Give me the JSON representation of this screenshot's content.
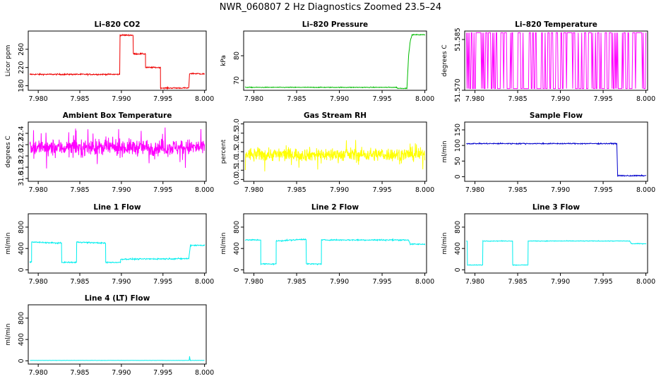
{
  "figure": {
    "title": "NWR_060807  2 Hz Diagnostics Zoomed 23.5–24"
  },
  "chart_data": [
    {
      "type": "line",
      "title": "Li–820 CO2",
      "ylabel": "Licor ppm",
      "xlim": [
        7.9788,
        8.0002
      ],
      "ylim": [
        170,
        300
      ],
      "xticks": [
        "7.980",
        "7.985",
        "7.990",
        "7.995",
        "8.000"
      ],
      "xtick_values": [
        7.98,
        7.985,
        7.99,
        7.995,
        8.0
      ],
      "yticks": [
        "180",
        "220",
        "260"
      ],
      "ytick_values": [
        180,
        220,
        260
      ],
      "color": "#ee0000",
      "noise": 1,
      "series": [
        {
          "x": [
            7.979,
            7.9898,
            7.9898,
            7.9914,
            7.9914,
            7.9929,
            7.9929,
            7.9947,
            7.9947,
            7.9981,
            7.9982,
            8.0
          ],
          "y": [
            205,
            205,
            291,
            291,
            250,
            250,
            220,
            220,
            175,
            175,
            207,
            206
          ]
        }
      ]
    },
    {
      "type": "line",
      "title": "Li–820 Pressure",
      "ylabel": "kPa",
      "xlim": [
        7.9788,
        8.0002
      ],
      "ylim": [
        66,
        90
      ],
      "xticks": [
        "7.980",
        "7.985",
        "7.990",
        "7.995",
        "8.000"
      ],
      "xtick_values": [
        7.98,
        7.985,
        7.99,
        7.995,
        8.0
      ],
      "yticks": [
        "70",
        "80"
      ],
      "ytick_values": [
        70,
        80
      ],
      "color": "#00bb00",
      "noise": 0.1,
      "series": [
        {
          "x": [
            7.979,
            7.9967,
            7.9968,
            7.9979,
            7.9981,
            7.9983,
            7.9985,
            8.0
          ],
          "y": [
            67.2,
            67.2,
            66.8,
            66.8,
            80,
            86,
            88.5,
            88.5
          ]
        }
      ]
    },
    {
      "type": "line",
      "title": "Li–820 Temperature",
      "ylabel": "degrees C",
      "xlim": [
        7.9788,
        8.0002
      ],
      "ylim": [
        51.57,
        51.5875
      ],
      "xticks": [
        "7.980",
        "7.985",
        "7.990",
        "7.995",
        "8.000"
      ],
      "xtick_values": [
        7.98,
        7.985,
        7.99,
        7.995,
        8.0
      ],
      "yticks": [
        "51.570",
        "51.585"
      ],
      "ytick_values": [
        51.57,
        51.585
      ],
      "color": "#ff00ff",
      "pattern": "toggle",
      "low": 51.5705,
      "high": 51.587,
      "series": []
    },
    {
      "type": "line",
      "title": "Ambient Box Temperature",
      "ylabel": "degrees C",
      "xlim": [
        7.9788,
        8.0002
      ],
      "ylim": [
        31.55,
        32.6
      ],
      "xticks": [
        "7.980",
        "7.985",
        "7.990",
        "7.995",
        "8.000"
      ],
      "xtick_values": [
        7.98,
        7.985,
        7.99,
        7.995,
        8.0
      ],
      "yticks": [
        "31.6",
        "31.8",
        "32.0",
        "32.2",
        "32.4"
      ],
      "ytick_values": [
        31.6,
        31.8,
        32.0,
        32.2,
        32.4
      ],
      "color": "#ff00ff",
      "pattern": "noise",
      "mean": 32.15,
      "spread": 0.22,
      "series": []
    },
    {
      "type": "line",
      "title": "Gas Stream RH",
      "ylabel": "percent",
      "xlim": [
        7.9788,
        8.0002
      ],
      "ylim": [
        -0.1,
        3.1
      ],
      "xticks": [
        "7.980",
        "7.985",
        "7.990",
        "7.995",
        "8.000"
      ],
      "xtick_values": [
        7.98,
        7.985,
        7.99,
        7.995,
        8.0
      ],
      "yticks": [
        "0.0",
        "0.5",
        "1.0",
        "1.5",
        "2.0",
        "2.5",
        "3.0"
      ],
      "ytick_values": [
        0,
        0.5,
        1,
        1.5,
        2,
        2.5,
        3
      ],
      "color": "#ffff00",
      "pattern": "noise",
      "mean": 1.35,
      "spread": 0.55,
      "series": []
    },
    {
      "type": "line",
      "title": "Sample Flow",
      "ylabel": "ml/min",
      "xlim": [
        7.9788,
        8.0002
      ],
      "ylim": [
        -15,
        175
      ],
      "xticks": [
        "7.980",
        "7.985",
        "7.990",
        "7.995",
        "8.000"
      ],
      "xtick_values": [
        7.98,
        7.985,
        7.99,
        7.995,
        8.0
      ],
      "yticks": [
        "0",
        "50",
        "100",
        "150"
      ],
      "ytick_values": [
        0,
        50,
        100,
        150
      ],
      "color": "#0000cc",
      "noise": 1.2,
      "series": [
        {
          "x": [
            7.979,
            7.9966,
            7.9967,
            8.0
          ],
          "y": [
            106,
            106,
            3,
            3
          ]
        }
      ]
    },
    {
      "type": "line",
      "title": "Line 1 Flow",
      "ylabel": "ml/min",
      "xlim": [
        7.9788,
        8.0002
      ],
      "ylim": [
        -60,
        1050
      ],
      "xticks": [
        "7.980",
        "7.985",
        "7.990",
        "7.995",
        "8.000"
      ],
      "xtick_values": [
        7.98,
        7.985,
        7.99,
        7.995,
        8.0
      ],
      "yticks": [
        "0",
        "400",
        "800"
      ],
      "ytick_values": [
        0,
        400,
        800
      ],
      "color": "#00eeee",
      "noise": 8,
      "series": [
        {
          "x": [
            7.979,
            7.9792,
            7.9792,
            7.9828,
            7.9828,
            7.9846,
            7.9846,
            7.9881,
            7.9881,
            7.9899,
            7.9899,
            7.9981,
            7.9983,
            8.0
          ],
          "y": [
            150,
            150,
            520,
            500,
            140,
            140,
            520,
            500,
            140,
            140,
            200,
            210,
            460,
            460
          ]
        }
      ]
    },
    {
      "type": "line",
      "title": "Line 2 Flow",
      "ylabel": "ml/min",
      "xlim": [
        7.9788,
        8.0002
      ],
      "ylim": [
        -60,
        1050
      ],
      "xticks": [
        "7.980",
        "7.985",
        "7.990",
        "7.995",
        "8.000"
      ],
      "xtick_values": [
        7.98,
        7.985,
        7.99,
        7.995,
        8.0
      ],
      "yticks": [
        "0",
        "400",
        "800"
      ],
      "ytick_values": [
        0,
        400,
        800
      ],
      "color": "#00eeee",
      "noise": 8,
      "series": [
        {
          "x": [
            7.979,
            7.9808,
            7.9808,
            7.9826,
            7.9826,
            7.9861,
            7.9861,
            7.9879,
            7.9879,
            7.9981,
            7.9983,
            8.0
          ],
          "y": [
            560,
            560,
            110,
            110,
            540,
            575,
            110,
            110,
            560,
            560,
            480,
            480
          ]
        }
      ]
    },
    {
      "type": "line",
      "title": "Line 3 Flow",
      "ylabel": "ml/min",
      "xlim": [
        7.9788,
        8.0002
      ],
      "ylim": [
        -60,
        1050
      ],
      "xticks": [
        "7.980",
        "7.985",
        "7.990",
        "7.995",
        "8.000"
      ],
      "xtick_values": [
        7.98,
        7.985,
        7.99,
        7.995,
        8.0
      ],
      "yticks": [
        "0",
        "400",
        "800"
      ],
      "ytick_values": [
        0,
        400,
        800
      ],
      "color": "#00eeee",
      "noise": 4,
      "series": [
        {
          "x": [
            7.979,
            7.9791,
            7.9791,
            7.9809,
            7.9809,
            7.9844,
            7.9844,
            7.9862,
            7.9862,
            7.9981,
            7.9983,
            8.0
          ],
          "y": [
            540,
            540,
            90,
            90,
            540,
            540,
            90,
            90,
            540,
            540,
            490,
            490
          ]
        }
      ]
    },
    {
      "type": "line",
      "title": "Line 4 (LT) Flow",
      "ylabel": "ml/min",
      "xlim": [
        7.9788,
        8.0002
      ],
      "ylim": [
        -60,
        1050
      ],
      "xticks": [
        "7.980",
        "7.985",
        "7.990",
        "7.995",
        "8.000"
      ],
      "xtick_values": [
        7.98,
        7.985,
        7.99,
        7.995,
        8.0
      ],
      "yticks": [
        "0",
        "400",
        "800"
      ],
      "ytick_values": [
        0,
        400,
        800
      ],
      "color": "#00eeee",
      "noise": 1.5,
      "series": [
        {
          "x": [
            7.979,
            7.99815,
            7.9982,
            7.99822,
            7.99828,
            8.0
          ],
          "y": [
            8,
            8,
            90,
            60,
            8,
            8
          ]
        }
      ]
    }
  ]
}
